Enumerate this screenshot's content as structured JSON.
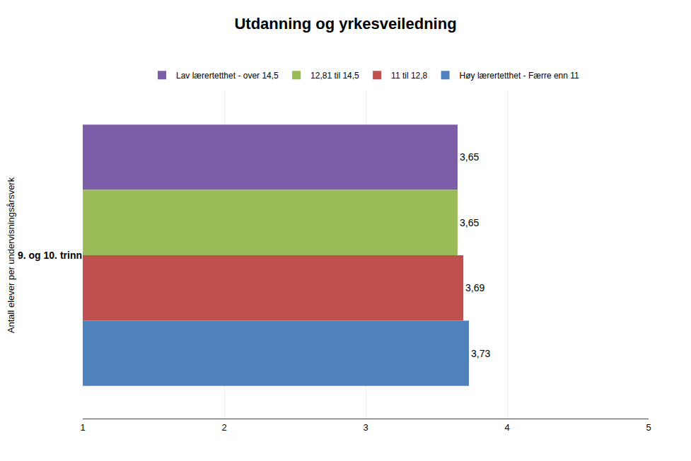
{
  "chart_data": {
    "type": "bar",
    "orientation": "horizontal",
    "title": "Utdanning og yrkesveiledning",
    "ylabel": "Antall elever per undervisningsårsverk",
    "categories": [
      "9. og 10. trinn"
    ],
    "series": [
      {
        "name": "Lav lærertetthet - over 14,5",
        "color": "#7B5EA7",
        "values": [
          3.65
        ],
        "value_labels": [
          "3,65"
        ]
      },
      {
        "name": "12,81 til 14,5",
        "color": "#9BBB59",
        "values": [
          3.65
        ],
        "value_labels": [
          "3,65"
        ]
      },
      {
        "name": "11 til 12,8",
        "color": "#C0504D",
        "values": [
          3.69
        ],
        "value_labels": [
          "3,69"
        ]
      },
      {
        "name": "Høy lærertetthet - Færre enn 11",
        "color": "#4F81BD",
        "values": [
          3.73
        ],
        "value_labels": [
          "3,73"
        ]
      }
    ],
    "xlim": [
      1,
      5
    ],
    "xticks": [
      1,
      2,
      3,
      4,
      5
    ],
    "grid": true,
    "legend": "top",
    "data_labels": true
  }
}
